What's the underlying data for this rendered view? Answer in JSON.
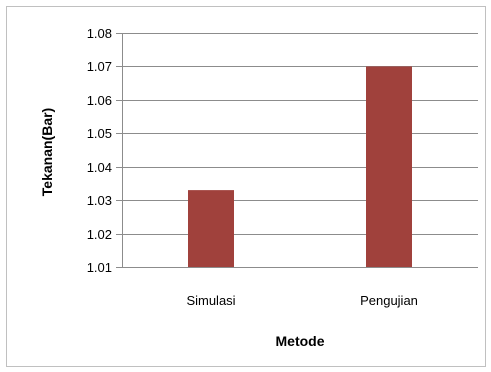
{
  "chart_data": {
    "type": "bar",
    "categories": [
      "Simulasi",
      "Pengujian"
    ],
    "values": [
      1.033,
      1.07
    ],
    "yticks": [
      "1.01",
      "1.02",
      "1.03",
      "1.04",
      "1.05",
      "1.06",
      "1.07",
      "1.08"
    ],
    "ylim": [
      1.01,
      1.08
    ],
    "xlabel": "Metode",
    "ylabel": "Tekanan(Bar)",
    "grid": true,
    "legend": "none",
    "bar_color": "#A0413C",
    "grid_color": "#8c8c8c"
  }
}
